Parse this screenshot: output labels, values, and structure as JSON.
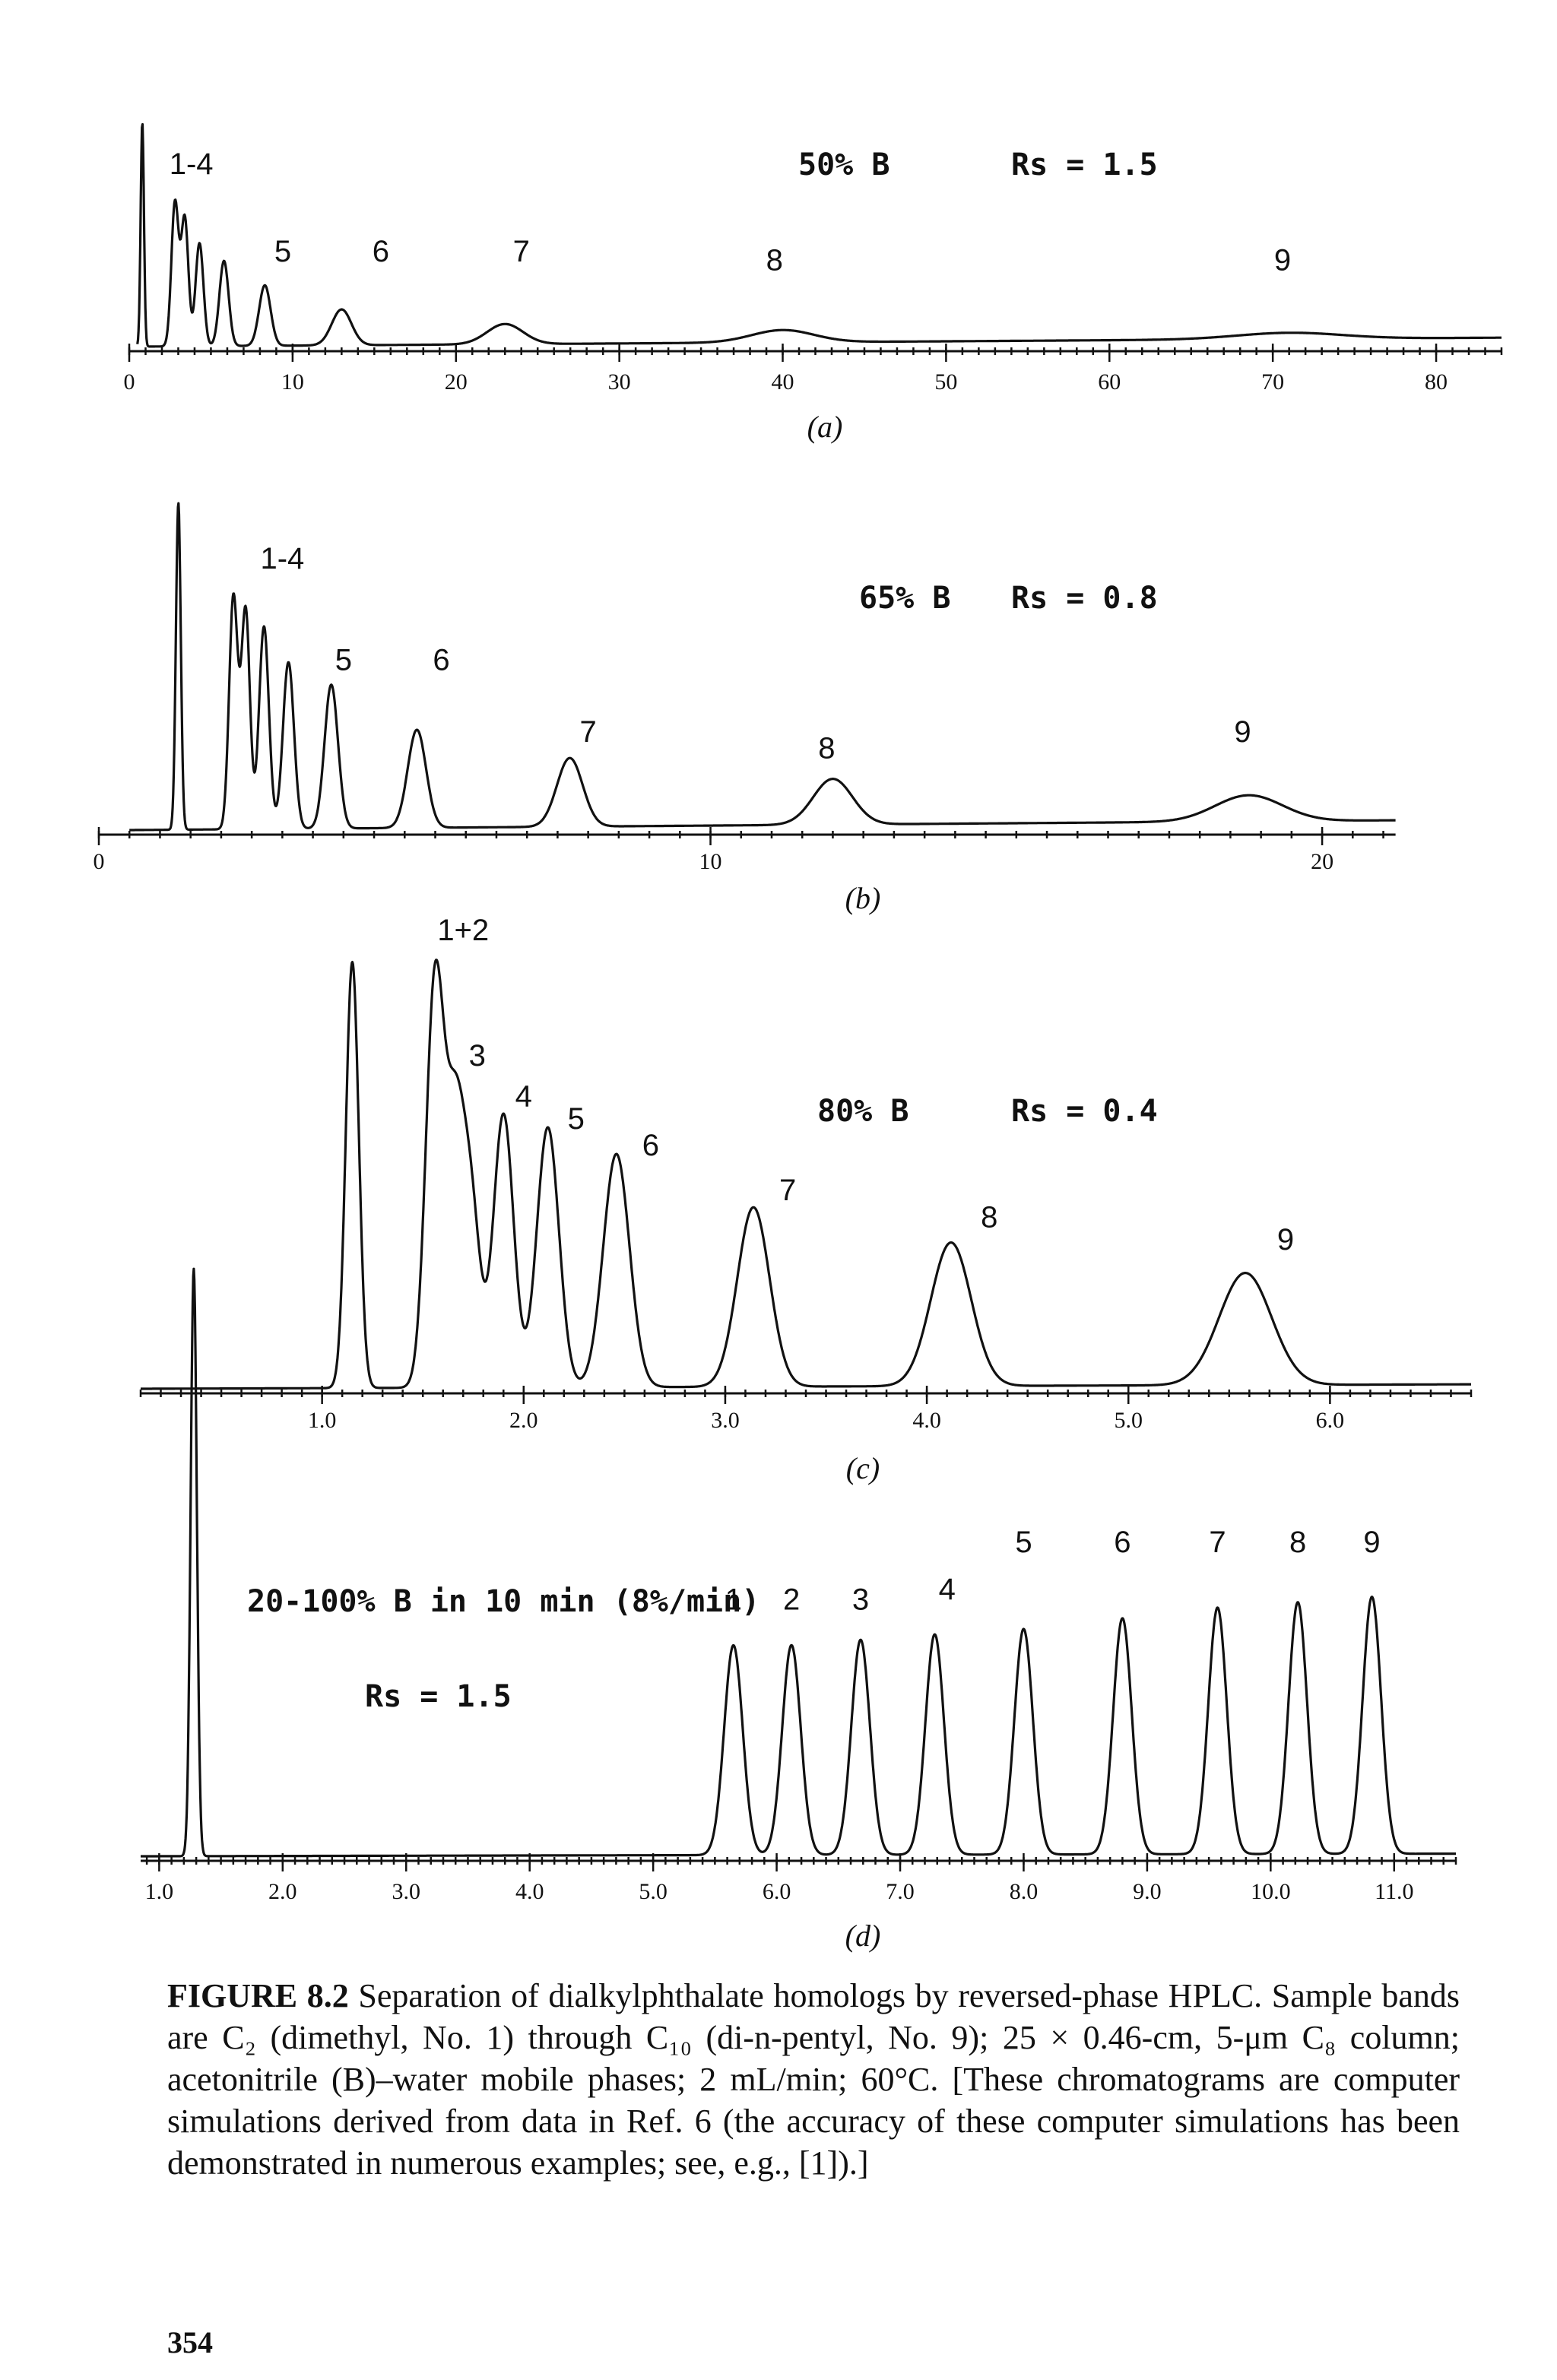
{
  "chart_data": [
    {
      "type": "line",
      "panel_label": "(a)",
      "condition": "50% B",
      "resolution_label": "Rs",
      "resolution_value": "= 1.5",
      "xlim": [
        0,
        84
      ],
      "xticks": [
        "0",
        "10",
        "20",
        "30",
        "40",
        "50",
        "60",
        "70",
        "80"
      ],
      "xtick_values": [
        0,
        10,
        20,
        30,
        40,
        50,
        60,
        70,
        80
      ],
      "minor_step": 1,
      "axis_start": 0,
      "axis_end": 84,
      "trace_start": 0.5,
      "trace_end": 84,
      "injection_peak": {
        "x": 0.8,
        "height": 1.0,
        "width": 0.1
      },
      "baseline_rise": 0.04,
      "ymax": 1.0,
      "peaks": [
        {
          "label": "1",
          "x": 2.8,
          "height": 0.64,
          "width": 0.22
        },
        {
          "label": "2",
          "x": 3.4,
          "height": 0.57,
          "width": 0.22
        },
        {
          "label": "3",
          "x": 4.3,
          "height": 0.46,
          "width": 0.24
        },
        {
          "label": "4",
          "x": 5.8,
          "height": 0.38,
          "width": 0.28
        },
        {
          "label": "5",
          "x": 8.3,
          "height": 0.27,
          "width": 0.35
        },
        {
          "label": "6",
          "x": 13.0,
          "height": 0.16,
          "width": 0.6
        },
        {
          "label": "7",
          "x": 23.0,
          "height": 0.09,
          "width": 1.1
        },
        {
          "label": "8",
          "x": 40.0,
          "height": 0.055,
          "width": 1.9
        },
        {
          "label": "9",
          "x": 71.0,
          "height": 0.028,
          "width": 3.2
        }
      ],
      "peak_labels": [
        {
          "text": "1-4",
          "x": 3.8,
          "y": 0.77
        },
        {
          "text": "5",
          "x": 9.4,
          "y": 0.38
        },
        {
          "text": "6",
          "x": 15.4,
          "y": 0.38
        },
        {
          "text": "7",
          "x": 24.0,
          "y": 0.38
        },
        {
          "text": "8",
          "x": 39.5,
          "y": 0.34
        },
        {
          "text": "9",
          "x": 70.6,
          "y": 0.34
        }
      ]
    },
    {
      "type": "line",
      "panel_label": "(b)",
      "condition": "65% B",
      "resolution_label": "Rs",
      "resolution_value": "= 0.8",
      "xlim": [
        0,
        22
      ],
      "xticks": [
        "0",
        "10",
        "20"
      ],
      "xtick_values": [
        0,
        10,
        20
      ],
      "minor_step": 0.5,
      "axis_start": 0,
      "axis_end": 21.2,
      "trace_start": 0.5,
      "trace_end": 21.2,
      "injection_peak": {
        "x": 1.3,
        "height": 1.0,
        "width": 0.04
      },
      "baseline_rise": 0.03,
      "ymax": 1.0,
      "peaks": [
        {
          "label": "1",
          "x": 2.2,
          "height": 0.71,
          "width": 0.07
        },
        {
          "label": "2",
          "x": 2.4,
          "height": 0.67,
          "width": 0.07
        },
        {
          "label": "3",
          "x": 2.7,
          "height": 0.62,
          "width": 0.08
        },
        {
          "label": "4",
          "x": 3.1,
          "height": 0.51,
          "width": 0.09
        },
        {
          "label": "5",
          "x": 3.8,
          "height": 0.44,
          "width": 0.11
        },
        {
          "label": "6",
          "x": 5.2,
          "height": 0.3,
          "width": 0.15
        },
        {
          "label": "7",
          "x": 7.7,
          "height": 0.21,
          "width": 0.21
        },
        {
          "label": "8",
          "x": 12.0,
          "height": 0.14,
          "width": 0.32
        },
        {
          "label": "9",
          "x": 18.8,
          "height": 0.08,
          "width": 0.55
        }
      ],
      "peak_labels": [
        {
          "text": "1-4",
          "x": 3.0,
          "y": 0.8
        },
        {
          "text": "5",
          "x": 4.0,
          "y": 0.49
        },
        {
          "text": "6",
          "x": 5.6,
          "y": 0.49
        },
        {
          "text": "7",
          "x": 8.0,
          "y": 0.27
        },
        {
          "text": "8",
          "x": 11.9,
          "y": 0.22
        },
        {
          "text": "9",
          "x": 18.7,
          "y": 0.27
        }
      ]
    },
    {
      "type": "line",
      "panel_label": "(c)",
      "condition": "80% B",
      "resolution_label": "Rs",
      "resolution_value": "= 0.4",
      "xlim": [
        0.1,
        6.7
      ],
      "xticks": [
        "1.0",
        "2.0",
        "3.0",
        "4.0",
        "5.0",
        "6.0"
      ],
      "xtick_values": [
        1.0,
        2.0,
        3.0,
        4.0,
        5.0,
        6.0
      ],
      "minor_step": 0.1,
      "axis_start": 0.1,
      "axis_end": 6.7,
      "trace_start": 0.1,
      "trace_end": 6.7,
      "injection_peak": {
        "x": 1.15,
        "height": 0.95,
        "width": 0.032
      },
      "baseline_rise": 0.01,
      "ymax": 1.0,
      "peaks": [
        {
          "label": "1",
          "x": 1.56,
          "height": 0.9,
          "width": 0.045
        },
        {
          "label": "2",
          "x": 1.66,
          "height": 0.55,
          "width": 0.045
        },
        {
          "label": "3",
          "x": 1.74,
          "height": 0.38,
          "width": 0.045
        },
        {
          "label": "4",
          "x": 1.9,
          "height": 0.61,
          "width": 0.05
        },
        {
          "label": "5",
          "x": 2.12,
          "height": 0.58,
          "width": 0.055
        },
        {
          "label": "6",
          "x": 2.46,
          "height": 0.52,
          "width": 0.065
        },
        {
          "label": "7",
          "x": 3.14,
          "height": 0.4,
          "width": 0.08
        },
        {
          "label": "8",
          "x": 4.12,
          "height": 0.32,
          "width": 0.1
        },
        {
          "label": "9",
          "x": 5.58,
          "height": 0.25,
          "width": 0.13
        }
      ],
      "peak_labels": [
        {
          "text": "1+2",
          "x": 1.7,
          "y": 1.0
        },
        {
          "text": "3",
          "x": 1.77,
          "y": 0.72
        },
        {
          "text": "4",
          "x": 2.0,
          "y": 0.63
        },
        {
          "text": "5",
          "x": 2.26,
          "y": 0.58
        },
        {
          "text": "6",
          "x": 2.63,
          "y": 0.52
        },
        {
          "text": "7",
          "x": 3.31,
          "y": 0.42
        },
        {
          "text": "8",
          "x": 4.31,
          "y": 0.36
        },
        {
          "text": "9",
          "x": 5.78,
          "y": 0.31
        }
      ]
    },
    {
      "type": "line",
      "panel_label": "(d)",
      "condition": "20-100% B in 10 min (8%/min)",
      "resolution_label": "Rs",
      "resolution_value": "= 1.5",
      "xlim": [
        0.85,
        11.5
      ],
      "xticks": [
        "1.0",
        "2.0",
        "3.0",
        "4.0",
        "5.0",
        "6.0",
        "7.0",
        "8.0",
        "9.0",
        "10.0",
        "11.0"
      ],
      "xtick_values": [
        1.0,
        2.0,
        3.0,
        4.0,
        5.0,
        6.0,
        7.0,
        8.0,
        9.0,
        10.0,
        11.0
      ],
      "minor_step": 0.1,
      "axis_start": 0.85,
      "axis_end": 11.5,
      "trace_start": 0.85,
      "trace_end": 11.5,
      "injection_peak": {
        "x": 1.28,
        "height": 1.12,
        "width": 0.025
      },
      "baseline_rise": 0.005,
      "ymax": 1.0,
      "peaks": [
        {
          "label": "1",
          "x": 5.65,
          "height": 0.4,
          "width": 0.075
        },
        {
          "label": "2",
          "x": 6.12,
          "height": 0.4,
          "width": 0.075
        },
        {
          "label": "3",
          "x": 6.68,
          "height": 0.41,
          "width": 0.075
        },
        {
          "label": "4",
          "x": 7.28,
          "height": 0.42,
          "width": 0.075
        },
        {
          "label": "5",
          "x": 8.0,
          "height": 0.43,
          "width": 0.075
        },
        {
          "label": "6",
          "x": 8.8,
          "height": 0.45,
          "width": 0.075
        },
        {
          "label": "7",
          "x": 9.57,
          "height": 0.47,
          "width": 0.075
        },
        {
          "label": "8",
          "x": 10.22,
          "height": 0.48,
          "width": 0.075
        },
        {
          "label": "9",
          "x": 10.82,
          "height": 0.49,
          "width": 0.075
        }
      ],
      "peak_labels": [
        {
          "text": "1",
          "x": 5.65,
          "y": 0.47
        },
        {
          "text": "2",
          "x": 6.12,
          "y": 0.47
        },
        {
          "text": "3",
          "x": 6.68,
          "y": 0.47
        },
        {
          "text": "4",
          "x": 7.38,
          "y": 0.49
        },
        {
          "text": "5",
          "x": 8.0,
          "y": 0.58
        },
        {
          "text": "6",
          "x": 8.8,
          "y": 0.58
        },
        {
          "text": "7",
          "x": 9.57,
          "y": 0.58
        },
        {
          "text": "8",
          "x": 10.22,
          "y": 0.58
        },
        {
          "text": "9",
          "x": 10.82,
          "y": 0.58
        }
      ]
    }
  ],
  "caption": {
    "figure_label": "FIGURE 8.2",
    "text": "Separation of dialkylphthalate homologs by reversed-phase HPLC. Sample bands are C₂ (dimethyl, No. 1) through C₁₀ (di-n-pentyl, No. 9); 25 × 0.46-cm, 5-μm C₈ column; acetonitrile (B)–water mobile phases; 2 mL/min; 60°C. [These chromatograms are computer simulations derived from data in Ref. 6 (the accuracy of these computer simulations has been demonstrated in numerous examples; see, e.g., [1]).]"
  },
  "page_number": "354"
}
